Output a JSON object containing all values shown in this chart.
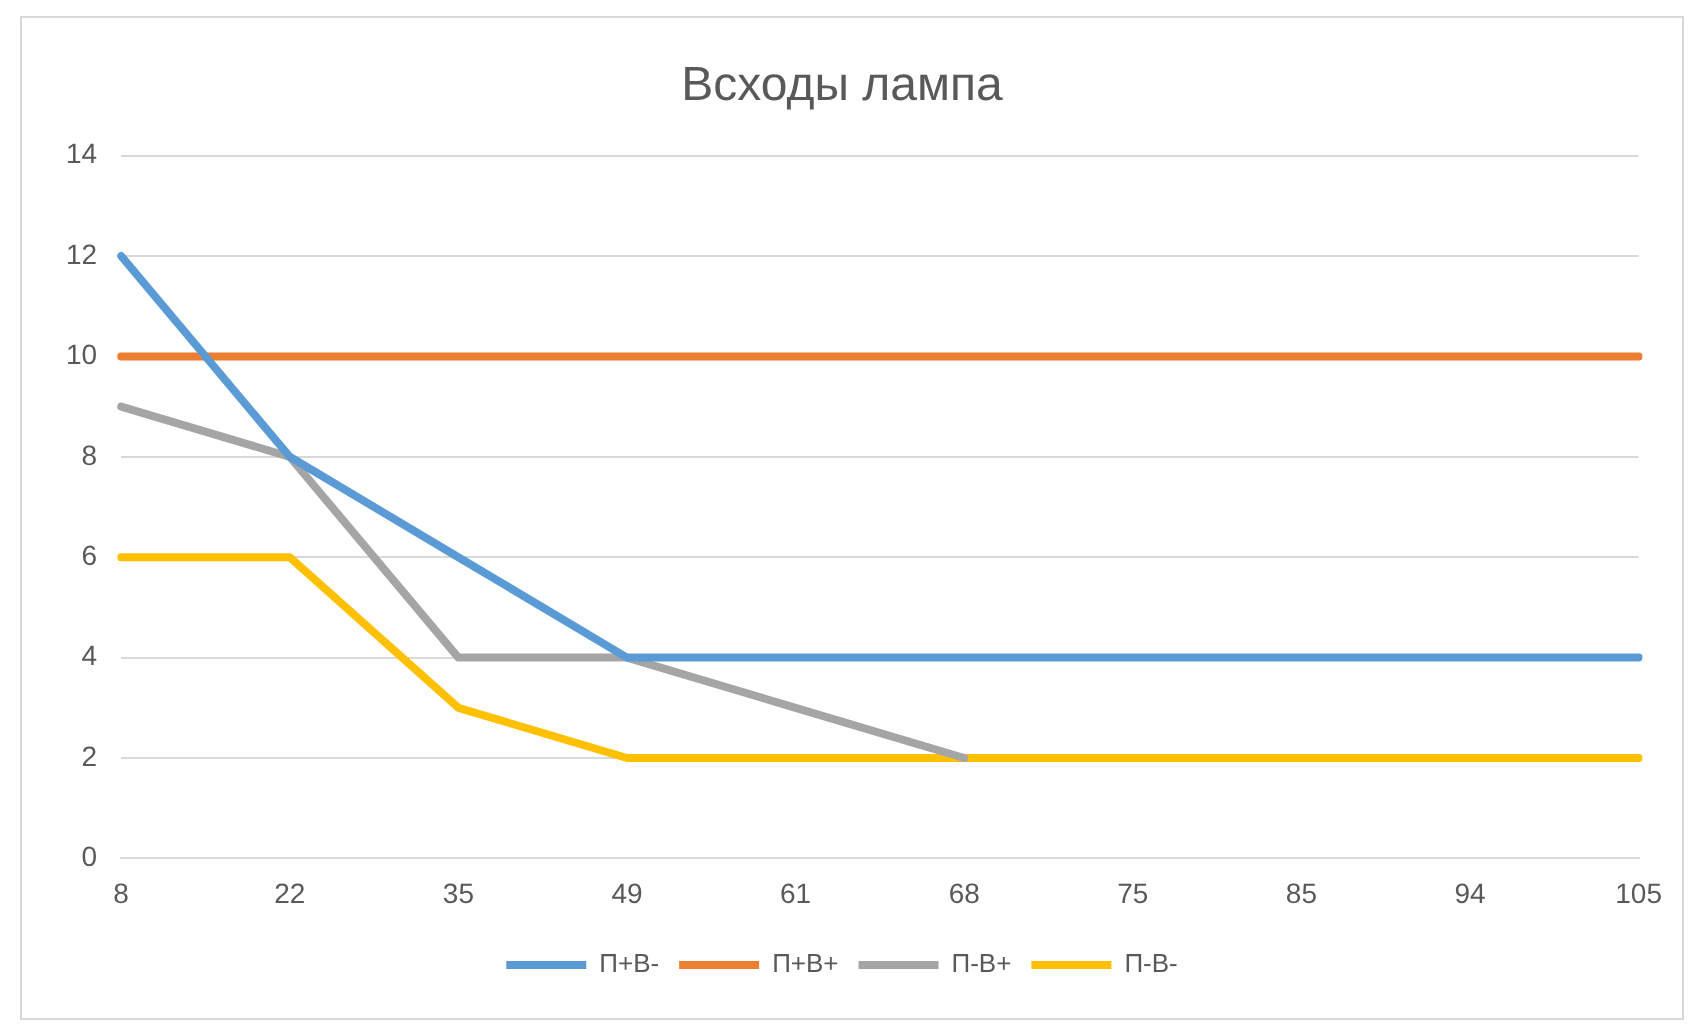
{
  "chart_data": {
    "type": "line",
    "title": "Всходы лампа",
    "categories": [
      "8",
      "22",
      "35",
      "49",
      "61",
      "68",
      "75",
      "85",
      "94",
      "105"
    ],
    "series": [
      {
        "name": "П+В-",
        "color": "#5b9bd5",
        "values": [
          12,
          8,
          6,
          4,
          4,
          4,
          4,
          4,
          4,
          4
        ]
      },
      {
        "name": "П+В+",
        "color": "#ed7d31",
        "values": [
          10,
          10,
          10,
          10,
          10,
          10,
          10,
          10,
          10,
          10
        ]
      },
      {
        "name": "П-В+",
        "color": "#a5a5a5",
        "values": [
          9,
          8,
          4,
          4,
          3,
          2,
          null,
          null,
          null,
          null
        ]
      },
      {
        "name": "П-В-",
        "color": "#ffc000",
        "values": [
          6,
          6,
          3,
          2,
          2,
          2,
          2,
          2,
          2,
          2
        ]
      }
    ],
    "ylim": [
      0,
      14
    ],
    "yticks": [
      0,
      2,
      4,
      6,
      8,
      10,
      12,
      14
    ],
    "grid": "y",
    "legend": "bottom",
    "marker": "none",
    "line_style": "solid"
  }
}
